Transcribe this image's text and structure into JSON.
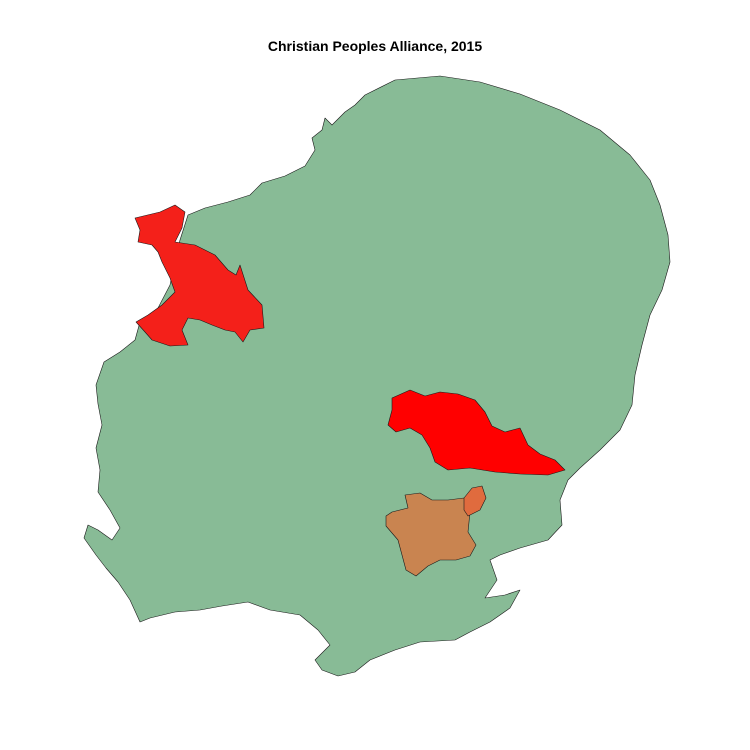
{
  "title": "Christian Peoples Alliance, 2015",
  "colors": {
    "background": "#ffffff",
    "base_region": "#88bb96",
    "constituency_high": "#ff0000",
    "constituency_high_alt": "#f4201a",
    "constituency_mid": "#c98450",
    "constituency_mid_alt": "#e06b3e"
  },
  "map": {
    "region": "East of England",
    "highlighted_constituencies": [
      {
        "id": "north-west-constituency",
        "color_key": "constituency_high_alt"
      },
      {
        "id": "central-east-constituency",
        "color_key": "constituency_high"
      },
      {
        "id": "south-central-constituency",
        "color_key": "constituency_mid"
      },
      {
        "id": "south-central-neighbour-constituency",
        "color_key": "constituency_mid_alt"
      }
    ]
  }
}
